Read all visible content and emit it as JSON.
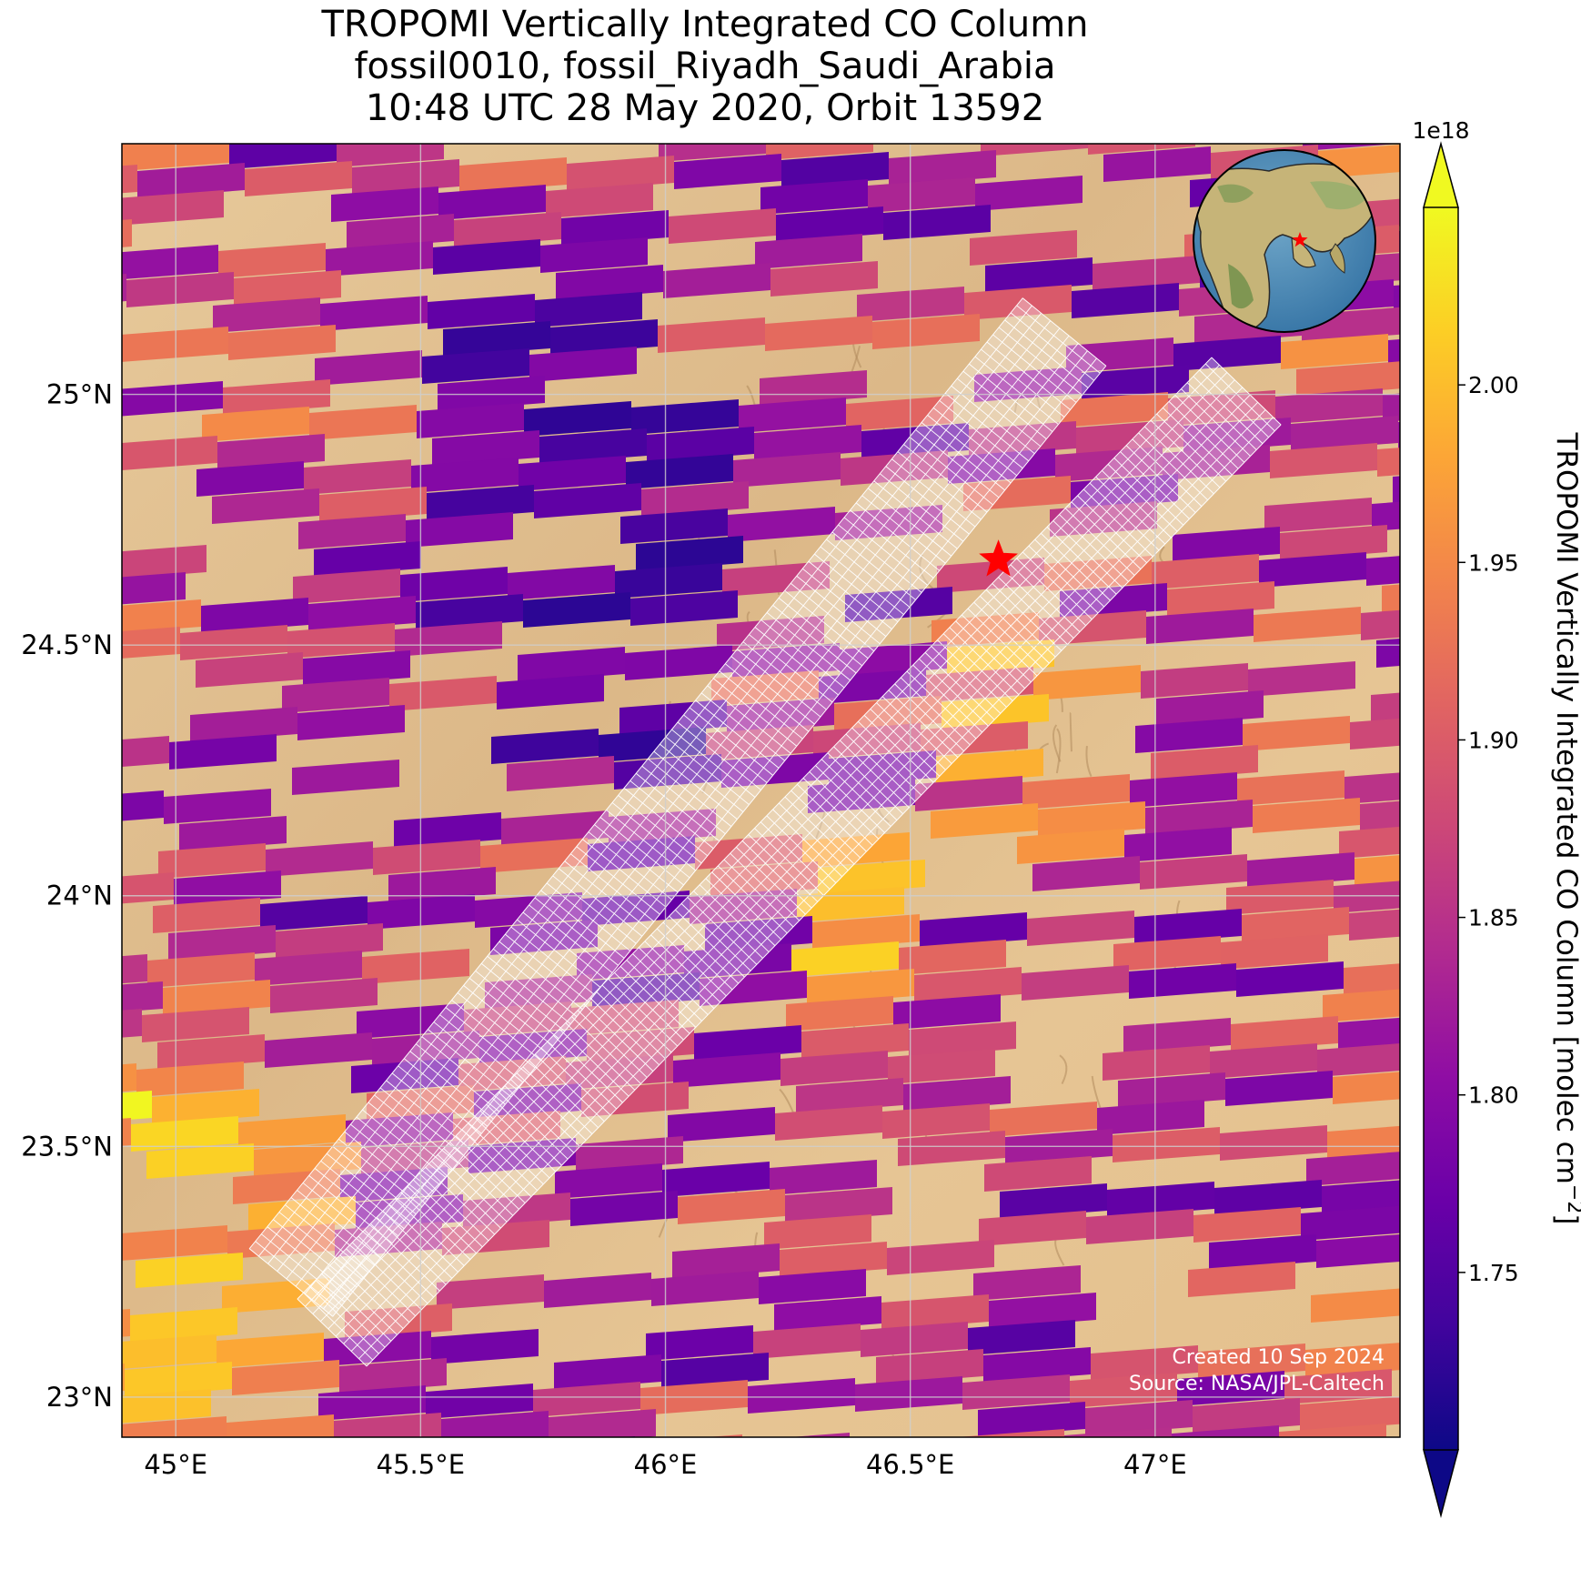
{
  "title": {
    "line1": "TROPOMI Vertically Integrated CO Column",
    "line2": "fossil0010, fossil_Riyadh_Saudi_Arabia",
    "line3": "10:48 UTC 28 May 2020, Orbit 13592"
  },
  "credits": {
    "created": "Created 10 Sep 2024",
    "source": "Source: NASA/JPL-Caltech"
  },
  "colorbar": {
    "label": "TROPOMI Vertically Integrated CO Column [molec cm",
    "label_exponent": "−2",
    "label_close": "]",
    "offset_text": "1e18",
    "min": 1.7,
    "max": 2.05,
    "ticks": [
      "1.75",
      "1.80",
      "1.85",
      "1.90",
      "1.95",
      "2.00"
    ],
    "tick_values": [
      1.75,
      1.8,
      1.85,
      1.9,
      1.95,
      2.0
    ],
    "colormap": "plasma",
    "extend": "both"
  },
  "map": {
    "lon_range": [
      44.89,
      47.5
    ],
    "lat_range": [
      22.92,
      25.5
    ],
    "lon_ticks": [
      {
        "value": 45.0,
        "label": "45°E"
      },
      {
        "value": 45.5,
        "label": "45.5°E"
      },
      {
        "value": 46.0,
        "label": "46°E"
      },
      {
        "value": 46.5,
        "label": "46.5°E"
      },
      {
        "value": 47.0,
        "label": "47°E"
      }
    ],
    "lat_ticks": [
      {
        "value": 25.0,
        "label": "25°N"
      },
      {
        "value": 24.5,
        "label": "24.5°N"
      },
      {
        "value": 24.0,
        "label": "24°N"
      },
      {
        "value": 23.5,
        "label": "23.5°N"
      },
      {
        "value": 23.0,
        "label": "23°N"
      }
    ],
    "gridlines": true,
    "background": "satellite desert imagery",
    "target": {
      "name": "Riyadh",
      "lon": 46.68,
      "lat": 24.67,
      "marker": "red-star"
    },
    "inset": "globe-locator with red star",
    "overlay": "OCO-3 target-mode sounding footprints (white outlines)"
  }
}
